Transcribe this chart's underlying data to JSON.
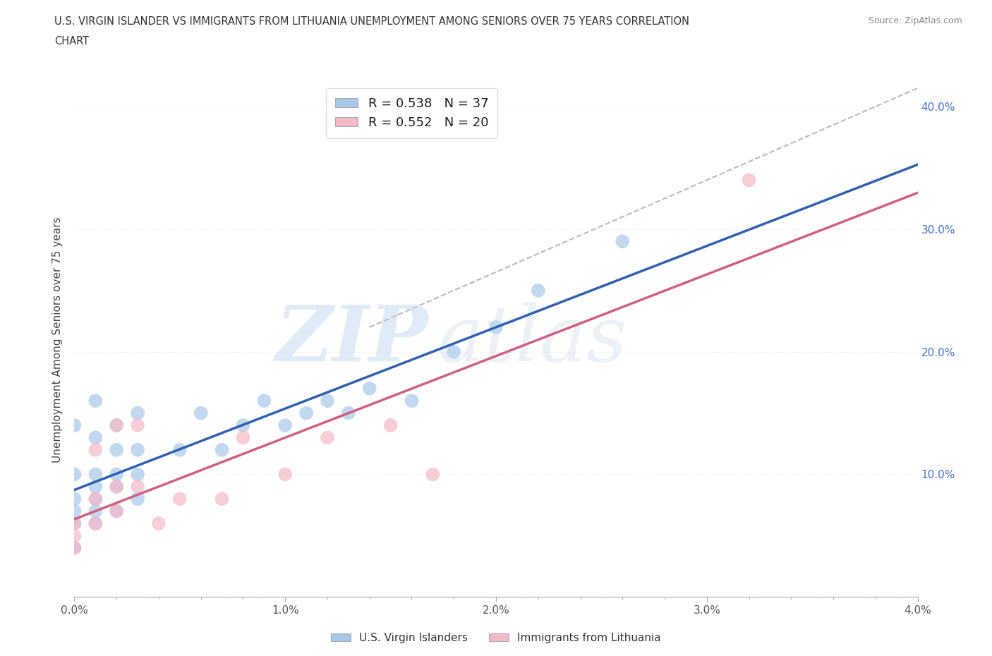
{
  "title_line1": "U.S. VIRGIN ISLANDER VS IMMIGRANTS FROM LITHUANIA UNEMPLOYMENT AMONG SENIORS OVER 75 YEARS CORRELATION",
  "title_line2": "CHART",
  "source": "Source: ZipAtlas.com",
  "ylabel": "Unemployment Among Seniors over 75 years",
  "xlim": [
    0.0,
    0.04
  ],
  "ylim": [
    0.0,
    0.42
  ],
  "xticks": [
    0.0,
    0.01,
    0.02,
    0.03,
    0.04
  ],
  "xtick_labels": [
    "0.0%",
    "1.0%",
    "2.0%",
    "3.0%",
    "4.0%"
  ],
  "yticks": [
    0.0,
    0.1,
    0.2,
    0.3,
    0.4
  ],
  "ytick_labels": [
    "",
    "10.0%",
    "20.0%",
    "30.0%",
    "40.0%"
  ],
  "blue_R": 0.538,
  "blue_N": 37,
  "pink_R": 0.552,
  "pink_N": 20,
  "blue_color": "#a8c8e8",
  "pink_color": "#f4b8c8",
  "blue_line_color": "#3060b0",
  "pink_line_color": "#d06080",
  "legend_label_blue": "U.S. Virgin Islanders",
  "legend_label_pink": "Immigrants from Lithuania",
  "blue_points_x": [
    0.0,
    0.0,
    0.0,
    0.0,
    0.0,
    0.0,
    0.001,
    0.001,
    0.001,
    0.001,
    0.001,
    0.001,
    0.001,
    0.002,
    0.002,
    0.002,
    0.002,
    0.002,
    0.003,
    0.003,
    0.003,
    0.003,
    0.005,
    0.006,
    0.007,
    0.008,
    0.009,
    0.01,
    0.011,
    0.012,
    0.013,
    0.014,
    0.016,
    0.018,
    0.02,
    0.022,
    0.026
  ],
  "blue_points_y": [
    0.04,
    0.06,
    0.07,
    0.08,
    0.1,
    0.14,
    0.06,
    0.07,
    0.08,
    0.09,
    0.1,
    0.13,
    0.16,
    0.07,
    0.09,
    0.1,
    0.12,
    0.14,
    0.08,
    0.1,
    0.12,
    0.15,
    0.12,
    0.15,
    0.12,
    0.14,
    0.16,
    0.14,
    0.15,
    0.16,
    0.15,
    0.17,
    0.16,
    0.2,
    0.22,
    0.25,
    0.29
  ],
  "pink_points_x": [
    0.0,
    0.0,
    0.0,
    0.001,
    0.001,
    0.001,
    0.002,
    0.002,
    0.002,
    0.003,
    0.003,
    0.004,
    0.005,
    0.007,
    0.008,
    0.01,
    0.012,
    0.015,
    0.017,
    0.032
  ],
  "pink_points_y": [
    0.04,
    0.05,
    0.06,
    0.06,
    0.08,
    0.12,
    0.07,
    0.09,
    0.14,
    0.09,
    0.14,
    0.06,
    0.08,
    0.08,
    0.13,
    0.1,
    0.13,
    0.14,
    0.1,
    0.34
  ],
  "dashed_line_x": [
    0.014,
    0.042
  ],
  "dashed_line_y": [
    0.22,
    0.43
  ],
  "dashed_line_color": "#bbbbbb",
  "background_color": "#ffffff",
  "grid_color": "#e8e8e8",
  "grid_style": "dotted"
}
